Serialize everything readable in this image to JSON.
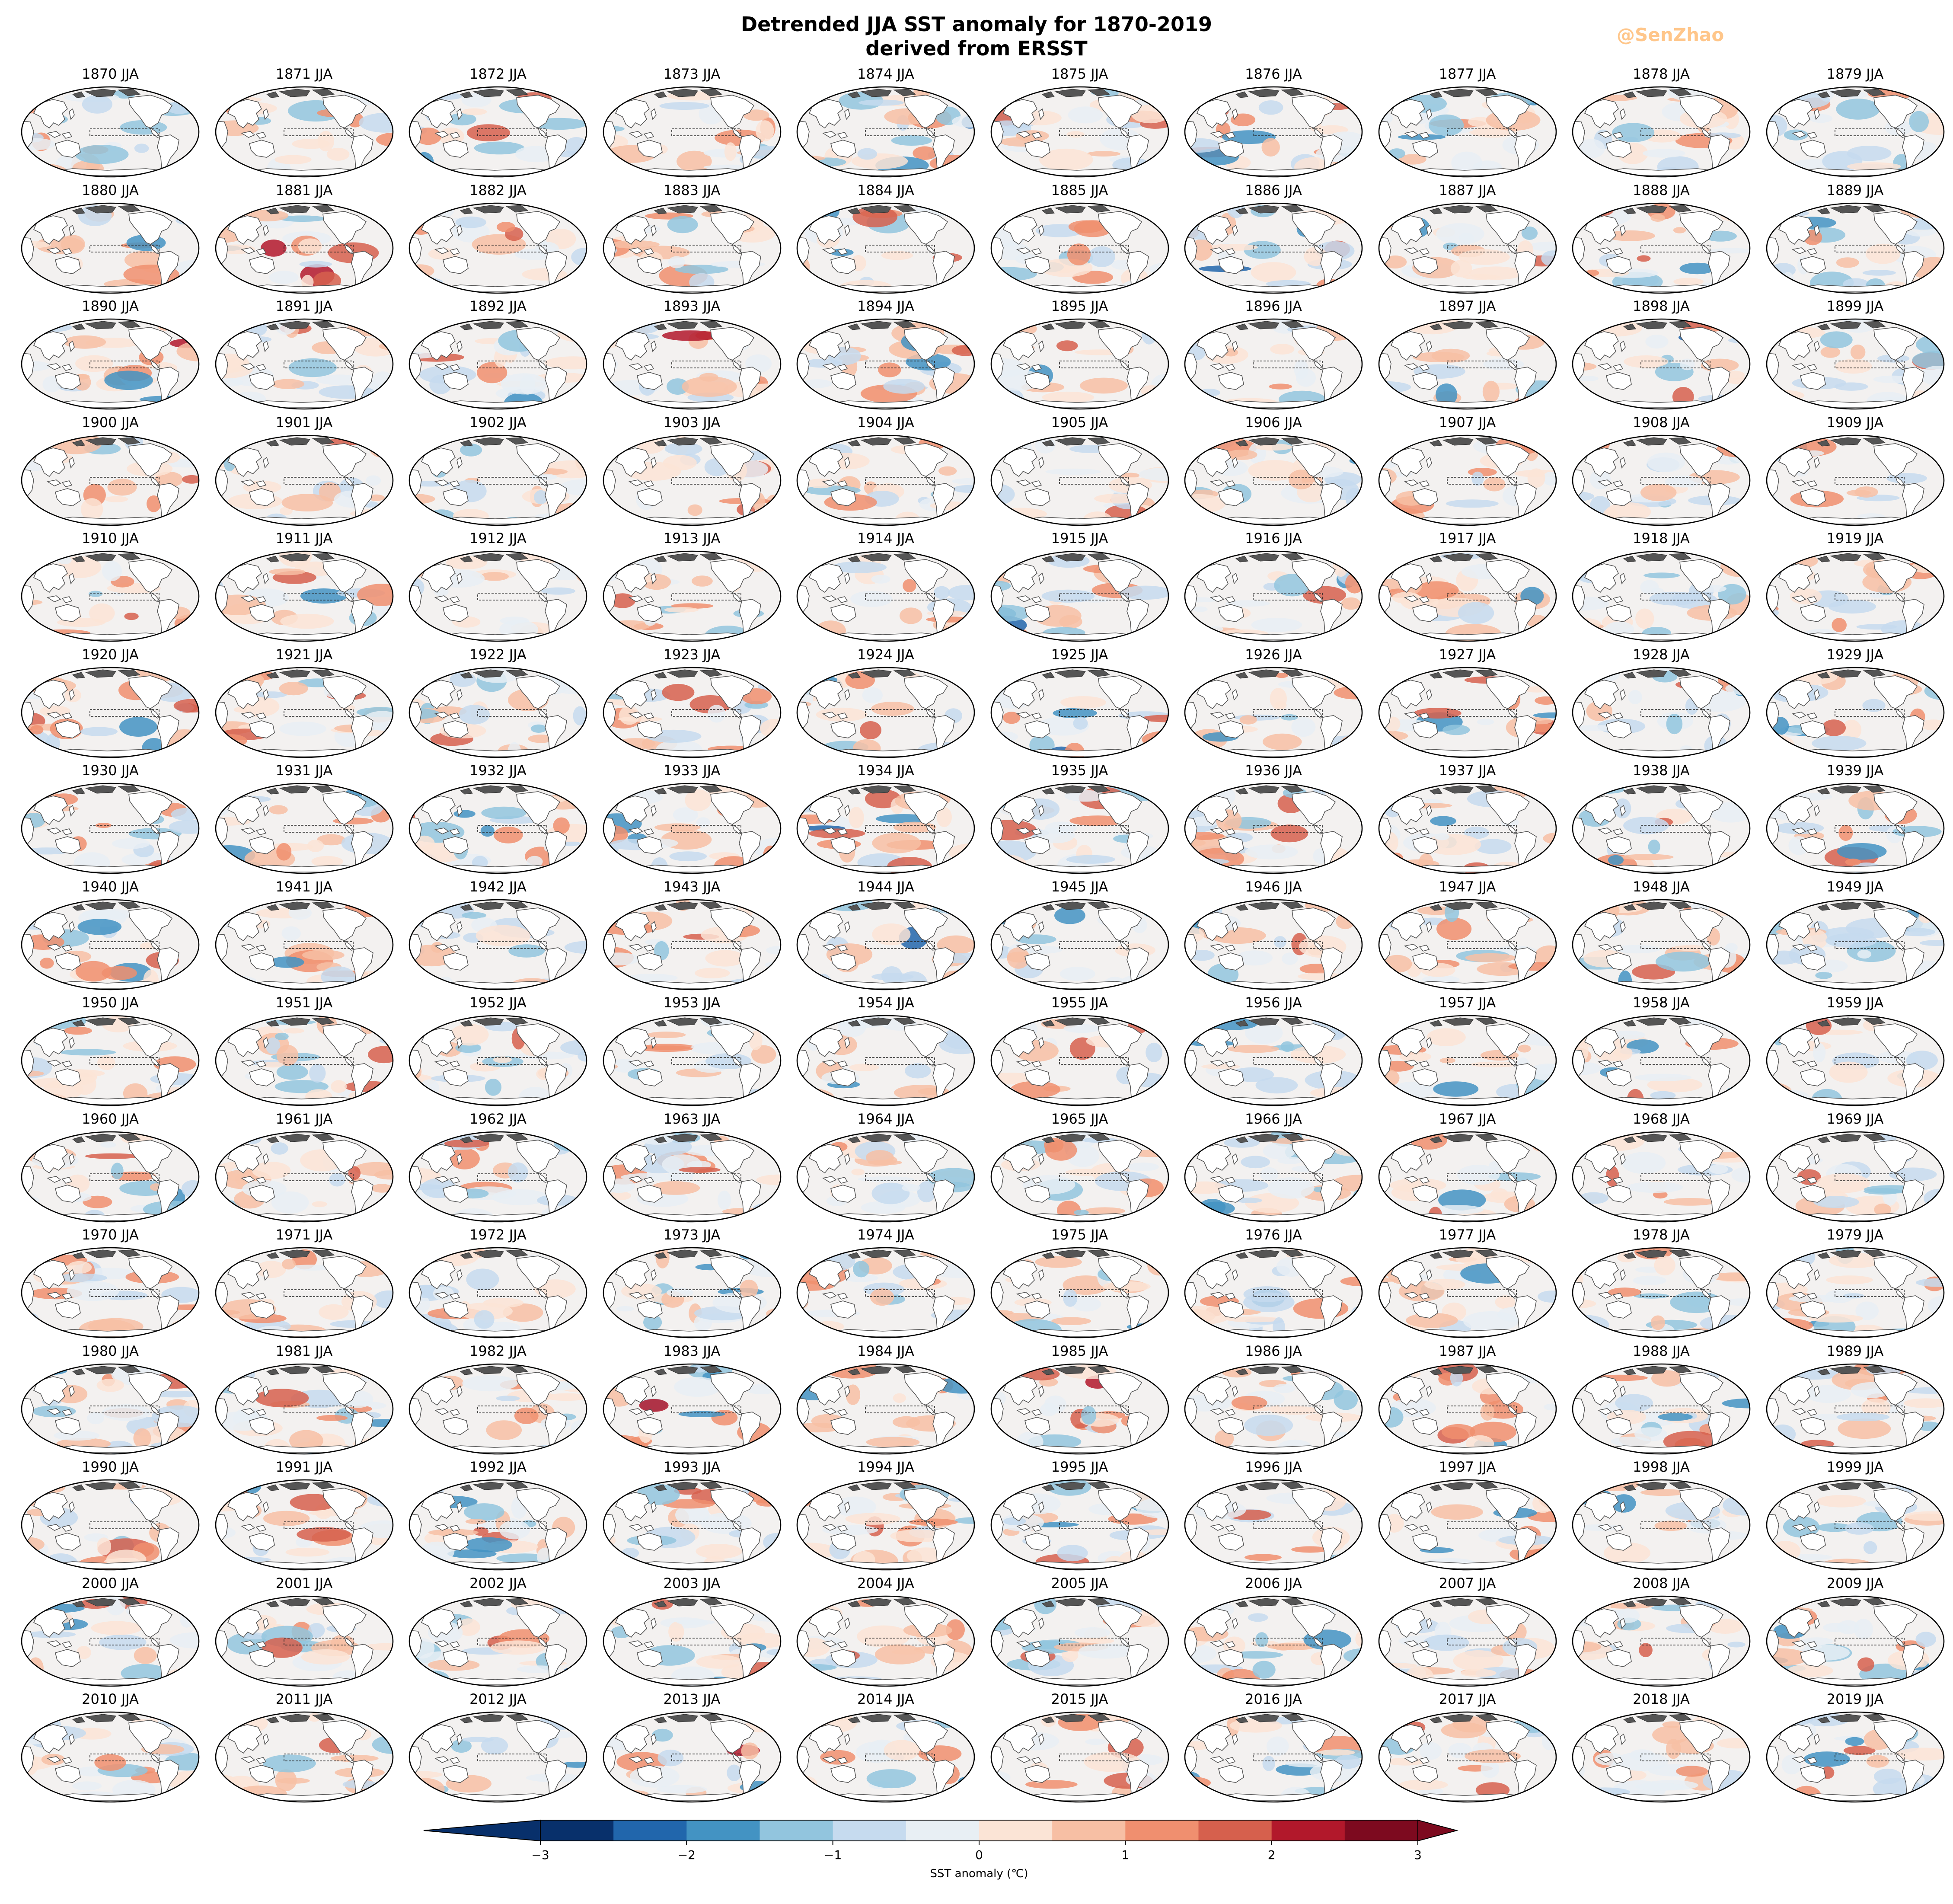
{
  "figure": {
    "title": "Detrended JJA SST anomaly for 1870-2019\nderived from ERSST",
    "watermark": "@SenZhao"
  },
  "panels": {
    "season": "JJA",
    "first_year": 1870,
    "last_year": 2019,
    "columns": 10
  },
  "chart_data": {
    "type": "heatmap",
    "colorbar": {
      "label": "SST anomaly (℃)",
      "ticks": [
        -3,
        -2,
        -1,
        0,
        1,
        2,
        3
      ],
      "tick_labels": [
        "−3",
        "−2",
        "−1",
        "0",
        "1",
        "2",
        "3"
      ],
      "levels": [
        -3,
        -2.5,
        -2,
        -1.5,
        -1,
        -0.5,
        0,
        0.5,
        1,
        1.5,
        2,
        2.5,
        3
      ],
      "colors": [
        "#08306b",
        "#2166ac",
        "#4393c3",
        "#92c5de",
        "#c6dbef",
        "#e8eff4",
        "#fbe4d6",
        "#f7bfa4",
        "#f08f6f",
        "#d6604d",
        "#b2182b",
        "#7d0a1f"
      ],
      "extend": "both",
      "cmap": "RdBu_r"
    },
    "box_region": "tropical Pacific (dashed box)"
  },
  "colors": {
    "land": "#ffffff",
    "coast": "#555555",
    "polar_land": "#555555"
  }
}
